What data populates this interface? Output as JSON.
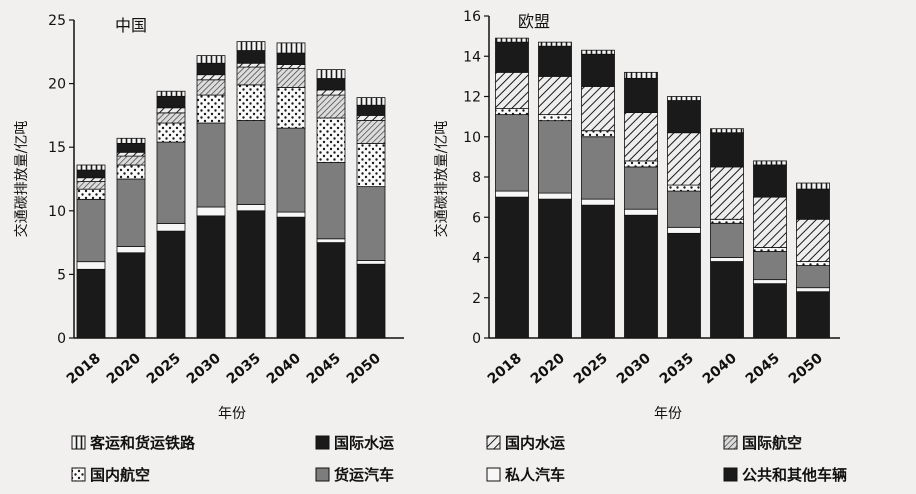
{
  "chart_data": [
    {
      "type": "bar",
      "title": "中国",
      "xlabel": "年份",
      "ylabel": "交通碳排放量/亿吨",
      "ylim": [
        0,
        25
      ],
      "yticks": [
        0,
        5,
        10,
        15,
        20,
        25
      ],
      "categories": [
        "2018",
        "2020",
        "2025",
        "2030",
        "2035",
        "2040",
        "2045",
        "2050"
      ],
      "stacked": true,
      "series": [
        {
          "name": "公共和其他车辆",
          "values": [
            5.4,
            6.7,
            8.4,
            9.6,
            10.0,
            9.5,
            7.5,
            5.8
          ]
        },
        {
          "name": "私人汽车",
          "values": [
            0.6,
            0.5,
            0.6,
            0.7,
            0.5,
            0.4,
            0.3,
            0.3
          ]
        },
        {
          "name": "货运汽车",
          "values": [
            4.9,
            5.3,
            6.4,
            6.6,
            6.6,
            6.6,
            6.0,
            5.8
          ]
        },
        {
          "name": "国内航空",
          "values": [
            0.8,
            1.1,
            1.5,
            2.2,
            2.8,
            3.2,
            3.5,
            3.4
          ]
        },
        {
          "name": "国际航空",
          "values": [
            0.6,
            0.7,
            0.8,
            1.2,
            1.4,
            1.5,
            1.8,
            1.8
          ]
        },
        {
          "name": "国内水运",
          "values": [
            0.3,
            0.3,
            0.4,
            0.4,
            0.3,
            0.3,
            0.4,
            0.4
          ]
        },
        {
          "name": "国际水运",
          "values": [
            0.6,
            0.7,
            0.9,
            0.9,
            1.0,
            0.9,
            0.9,
            0.8
          ]
        },
        {
          "name": "客运和货运铁路",
          "values": [
            0.4,
            0.4,
            0.4,
            0.6,
            0.7,
            0.8,
            0.7,
            0.6
          ]
        }
      ]
    },
    {
      "type": "bar",
      "title": "欧盟",
      "xlabel": "年份",
      "ylabel": "交通碳排放量/亿吨",
      "ylim": [
        0,
        16
      ],
      "yticks": [
        0,
        2,
        4,
        6,
        8,
        10,
        12,
        14,
        16
      ],
      "categories": [
        "2018",
        "2020",
        "2025",
        "2030",
        "2035",
        "2040",
        "2045",
        "2050"
      ],
      "stacked": true,
      "series": [
        {
          "name": "公共和其他车辆",
          "values": [
            7.0,
            6.9,
            6.6,
            6.1,
            5.2,
            3.8,
            2.7,
            2.3
          ]
        },
        {
          "name": "私人汽车",
          "values": [
            0.3,
            0.3,
            0.3,
            0.3,
            0.3,
            0.2,
            0.2,
            0.2
          ]
        },
        {
          "name": "货运汽车",
          "values": [
            3.8,
            3.6,
            3.1,
            2.1,
            1.8,
            1.7,
            1.4,
            1.1
          ]
        },
        {
          "name": "国内航空",
          "values": [
            0.3,
            0.3,
            0.3,
            0.3,
            0.3,
            0.2,
            0.2,
            0.2
          ]
        },
        {
          "name": "国际航空",
          "values": [
            0.0,
            0.0,
            0.0,
            0.0,
            0.0,
            0.0,
            0.0,
            0.0
          ]
        },
        {
          "name": "国内水运",
          "values": [
            1.8,
            1.9,
            2.2,
            2.4,
            2.6,
            2.6,
            2.5,
            2.1
          ]
        },
        {
          "name": "国际水运",
          "values": [
            1.5,
            1.5,
            1.6,
            1.7,
            1.6,
            1.7,
            1.6,
            1.5
          ]
        },
        {
          "name": "客运和货运铁路",
          "values": [
            0.2,
            0.2,
            0.2,
            0.3,
            0.2,
            0.2,
            0.2,
            0.3
          ]
        }
      ]
    }
  ],
  "legend": {
    "items": [
      {
        "name": "客运和货运铁路",
        "pattern": "rail"
      },
      {
        "name": "国际水运",
        "pattern": "black"
      },
      {
        "name": "国内水运",
        "pattern": "hatch"
      },
      {
        "name": "国际航空",
        "pattern": "hatchfine"
      },
      {
        "name": "国内航空",
        "pattern": "dots"
      },
      {
        "name": "货运汽车",
        "pattern": "gray"
      },
      {
        "name": "私人汽车",
        "pattern": "white"
      },
      {
        "name": "公共和其他车辆",
        "pattern": "black"
      }
    ]
  },
  "colors": {
    "black": "#1a1a1a",
    "gray": "#7d7d7d",
    "white": "#f7f7f7",
    "background": "#f2f0ee"
  }
}
